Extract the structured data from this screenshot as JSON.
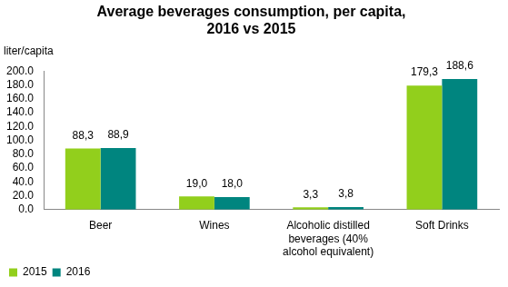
{
  "chart_data": {
    "type": "bar",
    "title": "Average beverages consumption, per capita, 2016 vs 2015",
    "y_label": "liter/capita",
    "categories": [
      "Beer",
      "Wines",
      "Alcoholic distilled beverages (40% alcohol equivalent)",
      "Soft Drinks"
    ],
    "series": [
      {
        "name": "2015",
        "color": "#92cf1c",
        "values": [
          88.3,
          19.0,
          3.3,
          179.3
        ],
        "value_labels": [
          "88,3",
          "19,0",
          "3,3",
          "179,3"
        ]
      },
      {
        "name": "2016",
        "color": "#00857f",
        "values": [
          88.9,
          18.0,
          3.8,
          188.6
        ],
        "value_labels": [
          "88,9",
          "18,0",
          "3,8",
          "188,6"
        ]
      }
    ],
    "ylim": [
      0,
      200
    ],
    "yticks": [
      {
        "value": 0,
        "label": "0.0"
      },
      {
        "value": 20,
        "label": "20.0"
      },
      {
        "value": 40,
        "label": "40.0"
      },
      {
        "value": 60,
        "label": "60.0"
      },
      {
        "value": 80,
        "label": "80.0"
      },
      {
        "value": 100,
        "label": "100.0"
      },
      {
        "value": 120,
        "label": "120.0"
      },
      {
        "value": 140,
        "label": "140.0"
      },
      {
        "value": 160,
        "label": "160.0"
      },
      {
        "value": 180,
        "label": "180.0"
      },
      {
        "value": 200,
        "label": "200.0"
      }
    ],
    "grid": false,
    "legend": "bottom",
    "data_labels": true
  }
}
